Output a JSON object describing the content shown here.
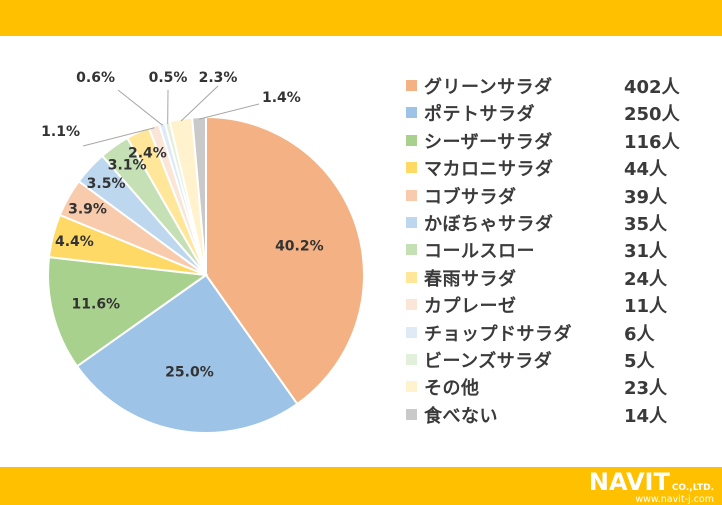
{
  "chart_data": {
    "type": "pie",
    "title": "",
    "categories": [
      "グリーンサラダ",
      "ポテトサラダ",
      "シーザーサラダ",
      "マカロニサラダ",
      "コブサラダ",
      "かぼちゃサラダ",
      "コールスロー",
      "春雨サラダ",
      "カプレーゼ",
      "チョップドサラダ",
      "ビーンズサラダ",
      "その他",
      "食べない"
    ],
    "counts": [
      402,
      250,
      116,
      44,
      39,
      35,
      31,
      24,
      11,
      6,
      5,
      23,
      14
    ],
    "count_labels": [
      "402人",
      "250人",
      "116人",
      "44人",
      "39人",
      "35人",
      "31人",
      "24人",
      "11人",
      "6人",
      "5人",
      "23人",
      "14人"
    ],
    "values": [
      40.2,
      25.0,
      11.6,
      4.4,
      3.9,
      3.5,
      3.1,
      2.4,
      1.1,
      0.6,
      0.5,
      2.3,
      1.4
    ],
    "value_labels": [
      "40.2%",
      "25.0%",
      "11.6%",
      "4.4%",
      "3.9%",
      "3.5%",
      "3.1%",
      "2.4%",
      "1.1%",
      "0.6%",
      "0.5%",
      "2.3%",
      "1.4%"
    ],
    "colors": [
      "#F4B183",
      "#9DC3E6",
      "#A9D18E",
      "#FFD966",
      "#F8CBAD",
      "#BDD7EE",
      "#C5E0B4",
      "#FFE699",
      "#FBE5D6",
      "#DEEBF7",
      "#E2F0D9",
      "#FFF2CC",
      "#C9C9C9"
    ],
    "start_angle": 0,
    "direction": "clockwise",
    "legend_position": "right"
  },
  "logo": {
    "main": "NAVIT",
    "sub": "CO.,LTD.",
    "url": "www.navit-j.com"
  }
}
